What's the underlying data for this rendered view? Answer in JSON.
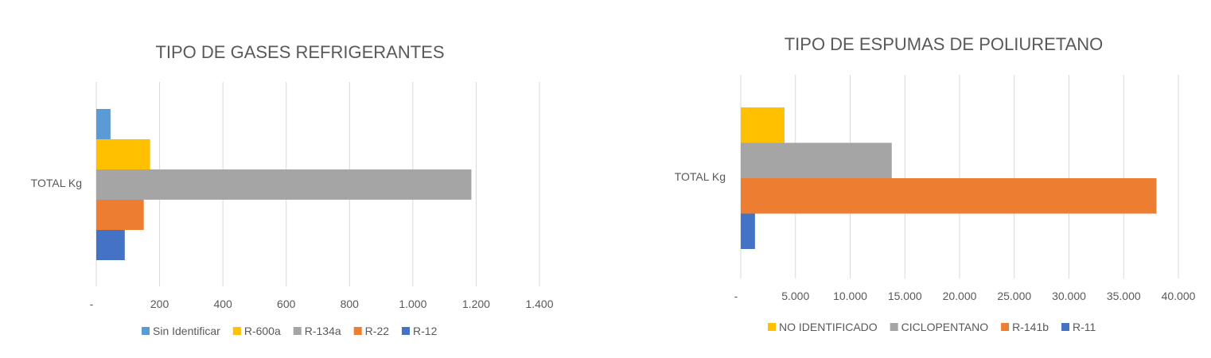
{
  "chart_data": [
    {
      "type": "bar",
      "orientation": "horizontal",
      "title": "TIPO DE GASES REFRIGERANTES",
      "categories": [
        "TOTAL Kg"
      ],
      "series": [
        {
          "name": "Sin Identificar",
          "values": [
            45
          ],
          "color": "#5b9bd5"
        },
        {
          "name": "R-600a",
          "values": [
            170
          ],
          "color": "#ffc000"
        },
        {
          "name": "R-134a",
          "values": [
            1185
          ],
          "color": "#a5a5a5"
        },
        {
          "name": "R-22",
          "values": [
            150
          ],
          "color": "#ed7d31"
        },
        {
          "name": "R-12",
          "values": [
            90
          ],
          "color": "#4472c4"
        }
      ],
      "xlim": [
        0,
        1400
      ],
      "xticks": [
        "-",
        "200",
        "400",
        "600",
        "800",
        "1.000",
        "1.200",
        "1.400"
      ],
      "grid": true,
      "legend": "bottom"
    },
    {
      "type": "bar",
      "orientation": "horizontal",
      "title": "TIPO DE ESPUMAS DE POLIURETANO",
      "categories": [
        "TOTAL Kg"
      ],
      "series": [
        {
          "name": "NO IDENTIFICADO",
          "values": [
            4000
          ],
          "color": "#ffc000"
        },
        {
          "name": "CICLOPENTANO",
          "values": [
            13800
          ],
          "color": "#a5a5a5"
        },
        {
          "name": "R-141b",
          "values": [
            38000
          ],
          "color": "#ed7d31"
        },
        {
          "name": "R-11",
          "values": [
            1300
          ],
          "color": "#4472c4"
        }
      ],
      "xlim": [
        0,
        40000
      ],
      "xticks": [
        "-",
        "5.000",
        "10.000",
        "15.000",
        "20.000",
        "25.000",
        "30.000",
        "35.000",
        "40.000"
      ],
      "grid": true,
      "legend": "bottom"
    }
  ]
}
